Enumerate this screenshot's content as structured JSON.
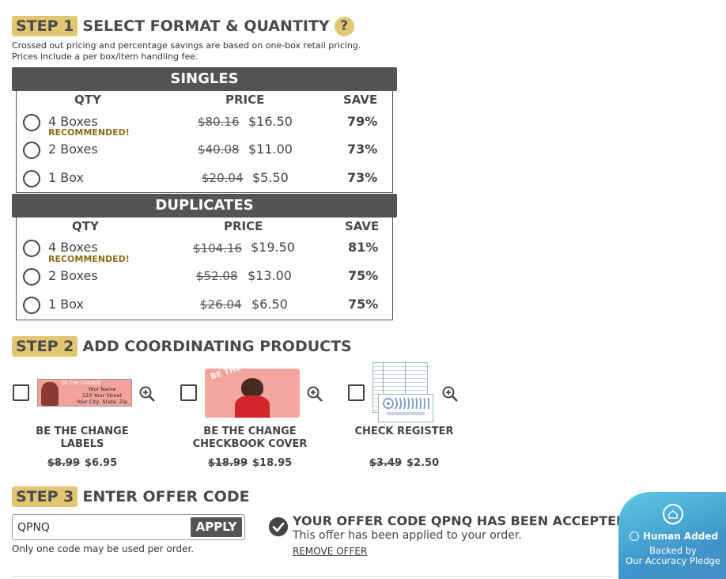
{
  "step1": {
    "badge": "STEP 1",
    "title": "SELECT FORMAT & QUANTITY",
    "help": "?",
    "note_line1": "Crossed out pricing and percentage savings are based on one-box retail pricing.",
    "note_line2": "Prices include a per box/item handling fee."
  },
  "singles": {
    "header": "SINGLES",
    "col_qty": "QTY",
    "col_price": "PRICE",
    "col_save": "SAVE",
    "rows": [
      {
        "qty": "4 Boxes",
        "tag": "RECOMMENDED!",
        "old": "$80.16",
        "new": "$16.50",
        "save": "79%"
      },
      {
        "qty": "2 Boxes",
        "tag": "",
        "old": "$40.08",
        "new": "$11.00",
        "save": "73%"
      },
      {
        "qty": "1 Box",
        "tag": "",
        "old": "$20.04",
        "new": "$5.50",
        "save": "73%"
      }
    ]
  },
  "duplicates": {
    "header": "DUPLICATES",
    "col_qty": "QTY",
    "col_price": "PRICE",
    "col_save": "SAVE",
    "rows": [
      {
        "qty": "4 Boxes",
        "tag": "RECOMMENDED!",
        "old": "$104.16",
        "new": "$19.50",
        "save": "81%"
      },
      {
        "qty": "2 Boxes",
        "tag": "",
        "old": "$52.08",
        "new": "$13.00",
        "save": "75%"
      },
      {
        "qty": "1 Box",
        "tag": "",
        "old": "$26.04",
        "new": "$6.50",
        "save": "75%"
      }
    ]
  },
  "step2": {
    "badge": "STEP 2",
    "title": "ADD COORDINATING PRODUCTS",
    "products": [
      {
        "name_line1": "BE THE CHANGE",
        "name_line2": "LABELS",
        "old": "$8.99",
        "new": "$6.95",
        "label_brand": "BE THE CHANGE",
        "label_l1": "Your Name",
        "label_l2": "123 Your Street",
        "label_l3": "Your City, State, Zip"
      },
      {
        "name_line1": "BE THE CHANGE",
        "name_line2": "CHECKBOOK COVER",
        "old": "$18.99",
        "new": "$18.95",
        "cover_text": "BE THE CHANGE"
      },
      {
        "name_line1": "CHECK REGISTER",
        "name_line2": "",
        "old": "$3.49",
        "new": "$2.50"
      }
    ]
  },
  "step3": {
    "badge": "STEP 3",
    "title": "ENTER OFFER CODE",
    "input_value": "QPNQ",
    "apply": "APPLY",
    "note": "Only one code may be used per order.",
    "accepted_title": "YOUR OFFER CODE QPNQ HAS BEEN ACCEPTED.",
    "accepted_sub": "This offer has been applied to your order.",
    "remove": "REMOVE OFFER"
  },
  "pledge": {
    "line1": "Human Added",
    "line2": "Backed by",
    "line3": "Our Accuracy Pledge"
  },
  "colors": {
    "badge": "#e2c673",
    "bar": "#545454",
    "recommended": "#8a6d1a",
    "pledge": "#4aaad8"
  }
}
